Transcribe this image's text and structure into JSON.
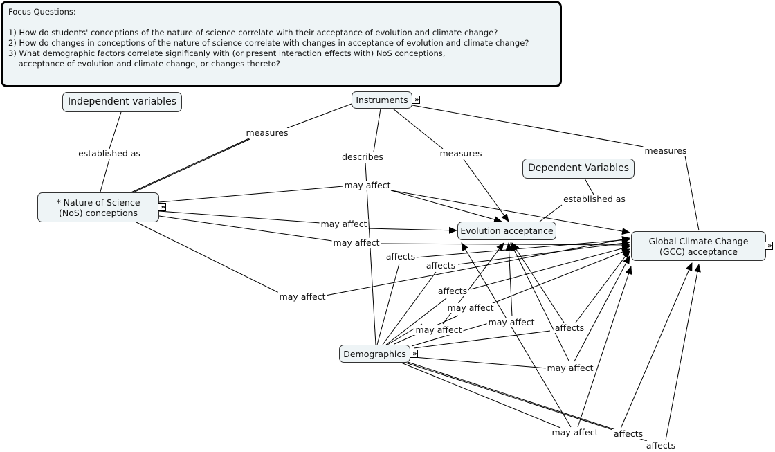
{
  "focus": {
    "title": "Focus Questions:",
    "questions": [
      "1) How do students' conceptions of the nature of science correlate with their acceptance of evolution and climate change?",
      "2) How do changes in conceptions of the nature of science correlate with changes in acceptance of evolution and climate change?",
      "3) What demographic factors correlate significanly with (or present interaction effects with) NoS conceptions,",
      "    acceptance of evolution and climate change, or changes thereto?"
    ]
  },
  "nodes": {
    "independent": "Independent variables",
    "instruments": "Instruments",
    "nos": "* Nature of Science (NoS) conceptions",
    "dependent": "Dependent Variables",
    "evolution": "Evolution acceptance",
    "gcc": "Global Climate Change (GCC) acceptance",
    "demographics": "Demographics"
  },
  "expand_icon": "double-chevron-right",
  "links": [
    "established as",
    "measures",
    "describes",
    "measures",
    "measures",
    "may affect",
    "established as",
    "may affect",
    "may affect",
    "affects",
    "affects",
    "affects",
    "may affect",
    "may affect",
    "may affect",
    "affects",
    "may affect",
    "may affect",
    "may affect",
    "affects",
    "affects"
  ]
}
